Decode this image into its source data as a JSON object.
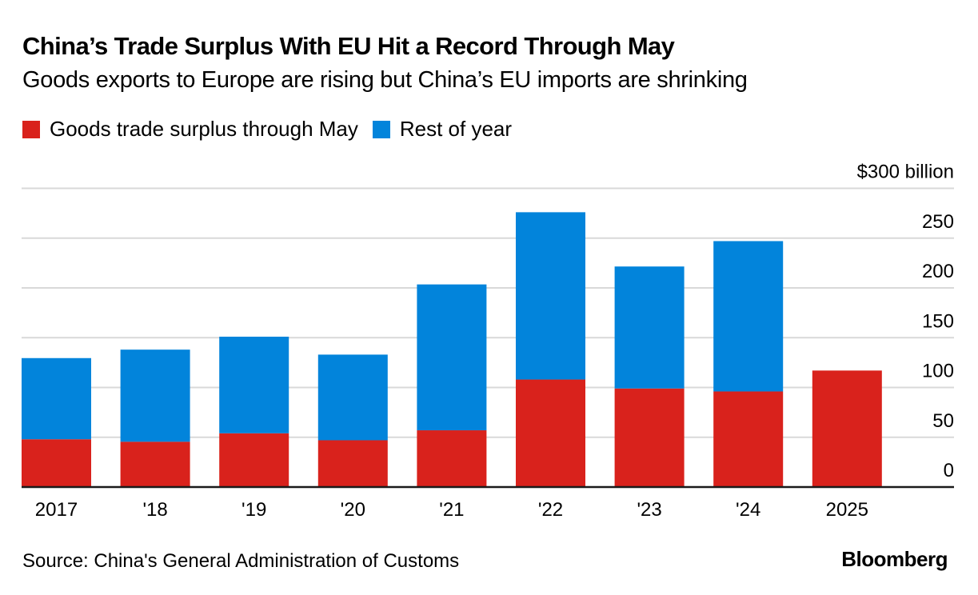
{
  "header": {
    "title": "China’s Trade Surplus With EU Hit a Record Through May",
    "subtitle": "Goods exports to Europe are rising but China’s EU imports are shrinking"
  },
  "footer": {
    "source": "Source: China's General Administration of Customs",
    "brand": "Bloomberg"
  },
  "chart_data": {
    "type": "bar",
    "stacked": true,
    "title": "China’s Trade Surplus With EU Hit a Record Through May",
    "subtitle": "Goods exports to Europe are rising but China’s EU imports are shrinking",
    "xlabel": "",
    "ylabel": "$ billion",
    "ylim": [
      0,
      300
    ],
    "yticks": [
      0,
      50,
      100,
      150,
      200,
      250,
      300
    ],
    "ytick_labels": [
      "0",
      "50",
      "100",
      "150",
      "200",
      "250",
      "$300 billion"
    ],
    "y_axis_side": "right",
    "grid": true,
    "legend_position": "top-left",
    "categories": [
      "2017",
      "'18",
      "'19",
      "'20",
      "'21",
      "'22",
      "'23",
      "'24",
      "2025"
    ],
    "series": [
      {
        "name": "Goods trade surplus through May",
        "color": "#D9221C",
        "values": [
          48,
          45.5,
          54,
          47,
          57,
          108,
          99,
          96,
          117
        ]
      },
      {
        "name": "Rest of year",
        "color": "#0284DB",
        "values": [
          81.5,
          92.5,
          97,
          86,
          146.5,
          168,
          122.5,
          151,
          null
        ]
      }
    ],
    "totals": [
      129.5,
      138,
      151,
      133,
      203.5,
      276,
      221.5,
      247,
      117
    ]
  }
}
